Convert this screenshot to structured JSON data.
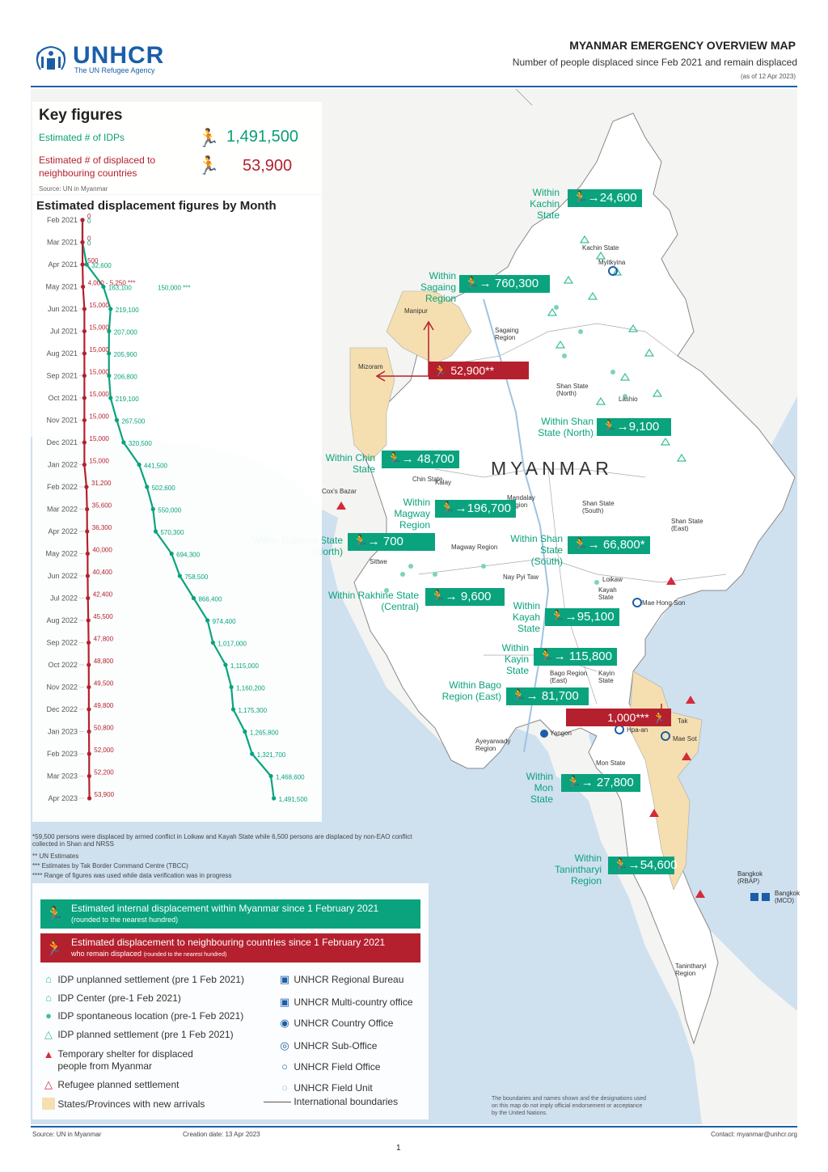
{
  "header": {
    "logo_word": "UNHCR",
    "logo_sub": "The UN Refugee Agency",
    "title": "MYANMAR EMERGENCY OVERVIEW MAP",
    "subtitle": "Number of people displaced since Feb 2021 and remain displaced",
    "date": "(as of 12 Apr 2023)"
  },
  "key_figures": {
    "title": "Key figures",
    "idp_label": "Estimated # of IDPs",
    "idp_value": "1,491,500",
    "neighbour_label": "Estimated # of displaced to neighbouring countries",
    "neighbour_value": "53,900",
    "source": "Source: UN in Myanmar"
  },
  "chart_data": {
    "type": "line",
    "title": "Estimated displacement figures by Month",
    "categories": [
      "Feb 2021",
      "Mar 2021",
      "Apr 2021",
      "May 2021",
      "Jun 2021",
      "Jul 2021",
      "Aug 2021",
      "Sep 2021",
      "Oct 2021",
      "Nov 2021",
      "Dec 2021",
      "Jan 2022",
      "Feb 2022",
      "Mar 2022",
      "Apr 2022",
      "May 2022",
      "Jun 2022",
      "Jul 2022",
      "Aug 2022",
      "Sep 2022",
      "Oct 2022",
      "Nov 2022",
      "Dec 2022",
      "Jan 2023",
      "Feb 2023",
      "Mar 2023",
      "Apr 2023"
    ],
    "series": [
      {
        "color": "#0aa37d",
        "values": [
          0,
          0,
          32600,
          163100,
          219100,
          207000,
          205900,
          206800,
          219100,
          267500,
          320500,
          441500,
          502600,
          550000,
          570300,
          694300,
          758500,
          866400,
          974400,
          1017000,
          1115000,
          1160200,
          1175300,
          1265800,
          1321700,
          1468600,
          1491500
        ],
        "labels": [
          "0",
          "0",
          "32,600",
          "163,100",
          "219,100",
          "207,000",
          "205,900",
          "206,800",
          "219,100",
          "267,500",
          "320,500",
          "441,500",
          "502,600",
          "550,000",
          "570,300",
          "694,300",
          "758,500",
          "866,400",
          "974,400",
          "1,017,000",
          "1,115,000",
          "1,160,200",
          "1,175,300",
          "1,265,800",
          "1,321,700",
          "1,468,600",
          "1,491,500"
        ]
      },
      {
        "color": "#b5202e",
        "values": [
          0,
          0,
          500,
          4000,
          15000,
          15000,
          15000,
          15000,
          15000,
          15000,
          15000,
          15000,
          31200,
          35600,
          36300,
          40000,
          40400,
          42400,
          45500,
          47800,
          48800,
          49500,
          49800,
          50800,
          52000,
          52200,
          53900
        ],
        "labels": [
          "0",
          "0",
          "500",
          "4,000 - 5,250 ***",
          "15,000",
          "15,000",
          "15,000",
          "15,000",
          "15,000",
          "15,000",
          "15,000",
          "15,000",
          "31,200",
          "35,600",
          "36,300",
          "40,000",
          "40,400",
          "42,400",
          "45,500",
          "47,800",
          "48,800",
          "49,500",
          "49,800",
          "50,800",
          "52,000",
          "52,200",
          "53,900"
        ]
      }
    ],
    "annotation": "150,000 ***",
    "ylim": [
      0,
      1500000
    ]
  },
  "notes": [
    "*59,500 persons were displaced by armed conflict in Loikaw and Kayah State while 6,500 persons are displaced by non-EAO conflict collected in Shan and NRSS",
    "** UN Estimates",
    "*** Estimates by Tak Border Command Centre (TBCC)",
    "**** Range of figures was used while data verification was in progress"
  ],
  "legend": {
    "banner_idp": "Estimated internal displacement within Myanmar since 1 February 2021",
    "banner_idp_sub": "(rounded to the nearest hundred)",
    "banner_nb": "Estimated displacement to neighbouring countries since 1 February 2021",
    "banner_nb_sub_a": "who remain displaced",
    "banner_nb_sub_b": "(rounded to the nearest hundred)",
    "left_items": [
      "IDP unplanned settlement (pre 1 Feb 2021)",
      "IDP Center (pre-1 Feb 2021)",
      "IDP spontaneous location (pre-1 Feb 2021)",
      "IDP planned settlement (pre 1 Feb 2021)",
      "Temporary shelter for displaced people from Myanmar",
      "Refugee planned settlement",
      "States/Provinces with new arrivals"
    ],
    "right_items": [
      "UNHCR Regional Bureau",
      "UNHCR Multi-country office",
      "UNHCR Country Office",
      "UNHCR Sub-Office",
      "UNHCR Field Office",
      "UNHCR Field Unit",
      "International boundaries"
    ]
  },
  "callouts": [
    {
      "label": "Within Kachin State",
      "value": "24,600"
    },
    {
      "label": "Within Sagaing Region",
      "value": "760,300"
    },
    {
      "label": "Within Shan State (North)",
      "value": "9,100"
    },
    {
      "label": "Within Chin State",
      "value": "48,700"
    },
    {
      "label": "Within Magway Region",
      "value": "196,700"
    },
    {
      "label": "Within Rakhine State (North)",
      "value": "700"
    },
    {
      "label": "Within Shan State (South)",
      "value": "66,800*"
    },
    {
      "label": "Within Rakhine State (Central)",
      "value": "9,600"
    },
    {
      "label": "Within Kayah State",
      "value": "95,100"
    },
    {
      "label": "Within Kayin State",
      "value": "115,800"
    },
    {
      "label": "Within Bago Region (East)",
      "value": "81,700"
    },
    {
      "label": "Within Mon State",
      "value": "27,800"
    },
    {
      "label": "Within Tanintharyi Region",
      "value": "54,600"
    }
  ],
  "red_callouts": [
    "52,900**",
    "1,000***"
  ],
  "places": {
    "country": "MYANMAR",
    "manipur": "Manipur",
    "mizoram": "Mizoram",
    "kachin": "Kachin State",
    "myitkyina": "Myitkyina",
    "sagaing": "Sagaing Region",
    "shan_north": "Shan State (North)",
    "lashio": "Lashio",
    "mandalay": "Mandalay Region",
    "magway": "Magway Region",
    "shan_south": "Shan State (South)",
    "shan_east": "Shan State (East)",
    "naypyitaw": "Nay Pyi Taw",
    "loikaw": "Loikaw",
    "kayah": "Kayah State",
    "mae_hong_son": "Mae Hong Son",
    "bago": "Bago Region (East)",
    "kayin": "Kayin State",
    "tak": "Tak",
    "mae_sot": "Mae Sot",
    "hpa_an": "Hpa-an",
    "yangon": "Yangon",
    "ayeyarwady": "Ayeyarwady Region",
    "mon": "Mon State",
    "tanintharyi": "Tanintharyi Region",
    "bangkok": "Bangkok (RBAP)",
    "sittwe": "Sittwe",
    "cox": "Cox's Bazar",
    "kale": "Kalay",
    "hakha": "Chin State",
    "bangkok_office": "Bangkok (MCO)"
  },
  "disclaimer": "The boundaries and names shown and the designations used on this map do not imply official endorsement or acceptance by the United Nations.",
  "footer": {
    "source": "Source: UN in Myanmar",
    "date": "Creation date: 13 Apr 2023",
    "contact": "Contact: myanmar@unhcr.org",
    "page": "1"
  },
  "colors": {
    "idp": "#0aa37d",
    "neighbour": "#b5202e",
    "brand": "#1b5ea8",
    "sea": "#cfe0ef",
    "land": "#f4f4f2",
    "affected_state": "#f5dfb0"
  }
}
